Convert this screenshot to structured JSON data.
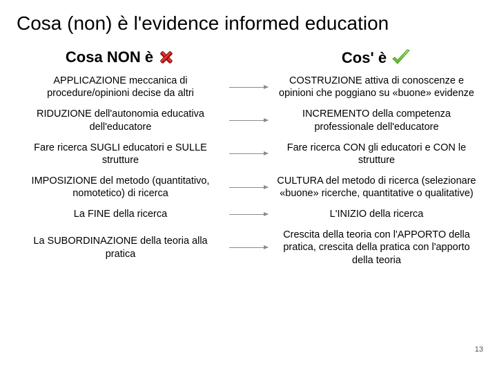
{
  "title": "Cosa (non) è l'evidence informed education",
  "left_header": "Cosa NON è",
  "right_header": "Cos' è",
  "rows": [
    {
      "left": "APPLICAZIONE meccanica di procedure/opinioni decise da altri",
      "right": "COSTRUZIONE attiva di conoscenze e opinioni che poggiano su «buone» evidenze"
    },
    {
      "left": "RIDUZIONE dell'autonomia educativa dell'educatore",
      "right": "INCREMENTO della competenza professionale dell'educatore"
    },
    {
      "left": "Fare ricerca SUGLI educatori e SULLE strutture",
      "right": "Fare ricerca CON gli educatori e CON le strutture"
    },
    {
      "left": "IMPOSIZIONE del metodo (quantitativo, nomotetico) di ricerca",
      "right": "CULTURA del metodo di ricerca (selezionare «buone» ricerche, quantitative o qualitative)"
    },
    {
      "left": "La FINE della ricerca",
      "right": "L'INIZIO della ricerca"
    },
    {
      "left": "La SUBORDINAZIONE della teoria alla pratica",
      "right": "Crescita della teoria con l'APPORTO della pratica, crescita della pratica con l'apporto della teoria"
    }
  ],
  "page_number": "13",
  "colors": {
    "x_fill": "#d42020",
    "x_border": "#7a0d0d",
    "check_fill": "#7ac943",
    "check_stroke": "#4a9b1f",
    "arrow": "#8a8a8a"
  }
}
